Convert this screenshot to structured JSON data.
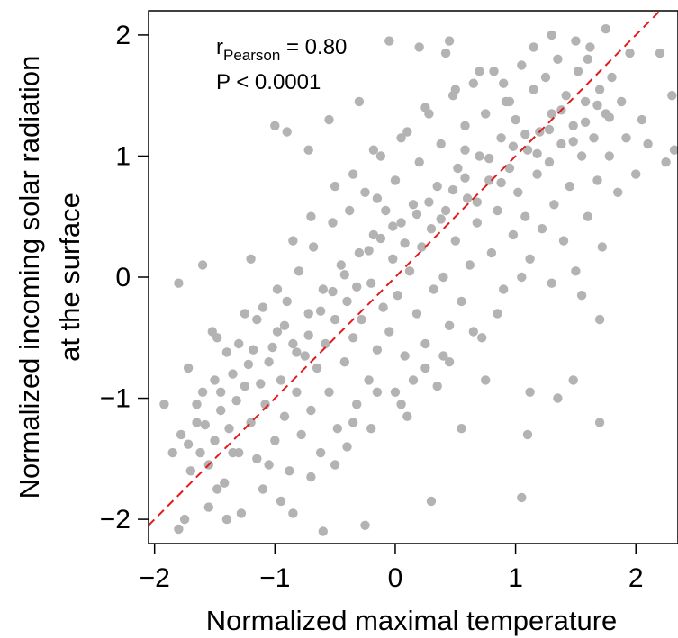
{
  "chart_data": {
    "type": "scatter",
    "title": "",
    "xlabel": "Normalized maximal temperature",
    "ylabel_lines": [
      "Normalized incoming solar radiation",
      "at the surface"
    ],
    "xlim": [
      -2.05,
      2.35
    ],
    "ylim": [
      -2.2,
      2.2
    ],
    "x_ticks": [
      -2,
      -1,
      0,
      1,
      2
    ],
    "y_ticks": [
      -2,
      -1,
      0,
      1,
      2
    ],
    "x_tick_labels": [
      "−2",
      "−1",
      "0",
      "1",
      "2"
    ],
    "y_tick_labels": [
      "−2",
      "−1",
      "0",
      "1",
      "2"
    ],
    "annotation": {
      "r_main": "r",
      "r_sub": "Pearson",
      "r_value": " = 0.80",
      "p_text": "P < 0.0001"
    },
    "fit_line": {
      "slope": 1.0,
      "intercept": 0.0,
      "color": "#e31a1c",
      "style": "dashed"
    },
    "point_color": "#b3b3b3",
    "grid": false,
    "points": [
      [
        -1.92,
        -1.05
      ],
      [
        -1.85,
        -1.45
      ],
      [
        -1.8,
        -2.08
      ],
      [
        -1.78,
        -1.3
      ],
      [
        -1.75,
        -2.0
      ],
      [
        -1.72,
        -0.75
      ],
      [
        -1.7,
        -1.6
      ],
      [
        -1.65,
        -1.2
      ],
      [
        -1.62,
        -1.45
      ],
      [
        -1.6,
        -0.95
      ],
      [
        -1.55,
        -1.55
      ],
      [
        -1.52,
        -0.45
      ],
      [
        -1.5,
        -1.35
      ],
      [
        -1.48,
        -0.5
      ],
      [
        -1.45,
        -1.1
      ],
      [
        -1.42,
        -1.7
      ],
      [
        -1.4,
        -0.62
      ],
      [
        -1.38,
        -1.25
      ],
      [
        -1.35,
        -0.8
      ],
      [
        -1.3,
        -1.45
      ],
      [
        -1.28,
        -1.95
      ],
      [
        -1.25,
        -0.9
      ],
      [
        -1.2,
        -1.2
      ],
      [
        -1.18,
        -0.6
      ],
      [
        -1.15,
        -1.5
      ],
      [
        -1.1,
        -0.25
      ],
      [
        -1.08,
        -1.05
      ],
      [
        -1.05,
        -0.7
      ],
      [
        -1.0,
        -1.35
      ],
      [
        -0.98,
        -0.45
      ],
      [
        -0.95,
        -0.85
      ],
      [
        -0.92,
        -1.15
      ],
      [
        -0.9,
        -0.2
      ],
      [
        -0.88,
        -1.6
      ],
      [
        -0.85,
        -0.55
      ],
      [
        -0.82,
        -0.95
      ],
      [
        -0.8,
        0.05
      ],
      [
        -0.78,
        -1.3
      ],
      [
        -0.75,
        -0.65
      ],
      [
        -0.72,
        -0.3
      ],
      [
        -0.7,
        -1.1
      ],
      [
        -0.68,
        0.25
      ],
      [
        -0.65,
        -0.75
      ],
      [
        -0.62,
        -1.45
      ],
      [
        -0.6,
        -0.1
      ],
      [
        -0.58,
        -0.55
      ],
      [
        -0.55,
        -0.95
      ],
      [
        -0.52,
        0.45
      ],
      [
        -0.5,
        -0.35
      ],
      [
        -0.48,
        -1.25
      ],
      [
        -0.45,
        0.1
      ],
      [
        -0.42,
        -0.7
      ],
      [
        -0.4,
        -0.2
      ],
      [
        -0.38,
        0.55
      ],
      [
        -0.35,
        -0.5
      ],
      [
        -0.32,
        -1.05
      ],
      [
        -0.3,
        0.2
      ],
      [
        -0.28,
        -0.35
      ],
      [
        -0.25,
        0.7
      ],
      [
        -0.22,
        -0.85
      ],
      [
        -0.2,
        -0.05
      ],
      [
        -0.18,
        0.35
      ],
      [
        -0.15,
        -0.6
      ],
      [
        -0.12,
        1.0
      ],
      [
        -0.1,
        -0.25
      ],
      [
        -0.08,
        0.55
      ],
      [
        -0.05,
        -0.45
      ],
      [
        -0.02,
        0.15
      ],
      [
        0.0,
        0.8
      ],
      [
        0.02,
        -0.15
      ],
      [
        0.05,
        0.45
      ],
      [
        0.08,
        -0.65
      ],
      [
        0.1,
        1.2
      ],
      [
        0.12,
        0.05
      ],
      [
        0.15,
        0.6
      ],
      [
        0.18,
        -0.3
      ],
      [
        0.2,
        0.95
      ],
      [
        0.22,
        0.25
      ],
      [
        0.25,
        -0.55
      ],
      [
        0.28,
        1.35
      ],
      [
        0.3,
        0.4
      ],
      [
        0.32,
        -0.1
      ],
      [
        0.35,
        0.75
      ],
      [
        0.38,
        1.1
      ],
      [
        0.4,
        0.0
      ],
      [
        0.42,
        0.55
      ],
      [
        0.45,
        -0.4
      ],
      [
        0.48,
        1.5
      ],
      [
        0.5,
        0.3
      ],
      [
        0.52,
        0.9
      ],
      [
        0.55,
        -0.2
      ],
      [
        0.58,
        1.25
      ],
      [
        0.6,
        0.65
      ],
      [
        0.62,
        0.1
      ],
      [
        0.65,
        1.6
      ],
      [
        0.68,
        0.45
      ],
      [
        0.7,
        1.0
      ],
      [
        0.72,
        -0.5
      ],
      [
        0.75,
        1.35
      ],
      [
        0.78,
        0.8
      ],
      [
        0.8,
        0.2
      ],
      [
        0.82,
        1.7
      ],
      [
        0.85,
        0.55
      ],
      [
        0.88,
        1.15
      ],
      [
        0.9,
        -0.1
      ],
      [
        0.92,
        1.45
      ],
      [
        0.95,
        0.9
      ],
      [
        0.98,
        0.35
      ],
      [
        1.0,
        1.3
      ],
      [
        1.02,
        0.7
      ],
      [
        1.05,
        1.75
      ],
      [
        1.08,
        0.5
      ],
      [
        1.1,
        1.05
      ],
      [
        1.12,
        0.15
      ],
      [
        1.15,
        1.55
      ],
      [
        1.18,
        0.85
      ],
      [
        1.2,
        1.2
      ],
      [
        1.22,
        0.4
      ],
      [
        1.25,
        1.65
      ],
      [
        1.28,
        0.95
      ],
      [
        1.3,
        1.35
      ],
      [
        1.32,
        0.6
      ],
      [
        1.35,
        1.8
      ],
      [
        1.38,
        1.1
      ],
      [
        1.4,
        0.3
      ],
      [
        1.42,
        1.5
      ],
      [
        1.45,
        0.75
      ],
      [
        1.48,
        1.25
      ],
      [
        1.5,
        0.05
      ],
      [
        1.52,
        1.7
      ],
      [
        1.55,
        1.0
      ],
      [
        1.58,
        1.45
      ],
      [
        1.6,
        0.5
      ],
      [
        1.62,
        1.9
      ],
      [
        1.65,
        1.15
      ],
      [
        1.68,
        0.8
      ],
      [
        1.7,
        1.55
      ],
      [
        1.72,
        0.25
      ],
      [
        1.75,
        1.35
      ],
      [
        1.78,
        1.0
      ],
      [
        1.8,
        1.65
      ],
      [
        1.85,
        0.7
      ],
      [
        1.88,
        1.45
      ],
      [
        1.92,
        1.15
      ],
      [
        1.95,
        1.85
      ],
      [
        2.0,
        0.85
      ],
      [
        2.05,
        1.3
      ],
      [
        2.1,
        1.1
      ],
      [
        2.2,
        1.85
      ],
      [
        2.25,
        0.95
      ],
      [
        2.3,
        1.5
      ],
      [
        2.32,
        1.05
      ],
      [
        -1.8,
        -0.05
      ],
      [
        -1.6,
        0.1
      ],
      [
        -1.25,
        -0.3
      ],
      [
        -1.2,
        0.15
      ],
      [
        -1.0,
        1.25
      ],
      [
        -0.9,
        1.2
      ],
      [
        -0.72,
        1.05
      ],
      [
        -0.55,
        1.3
      ],
      [
        -0.3,
        1.45
      ],
      [
        -0.25,
        -2.05
      ],
      [
        -0.6,
        -2.1
      ],
      [
        -0.05,
        1.95
      ],
      [
        0.1,
        -1.15
      ],
      [
        0.2,
        1.9
      ],
      [
        0.45,
        1.95
      ],
      [
        0.3,
        -1.85
      ],
      [
        0.55,
        -1.25
      ],
      [
        0.75,
        -0.85
      ],
      [
        1.05,
        -1.82
      ],
      [
        1.1,
        -1.3
      ],
      [
        1.12,
        -0.95
      ],
      [
        1.35,
        -1.0
      ],
      [
        1.48,
        -0.85
      ],
      [
        1.7,
        -1.2
      ],
      [
        1.7,
        -0.35
      ],
      [
        0.58,
        1.05
      ],
      [
        0.42,
        1.85
      ],
      [
        0.95,
        1.45
      ],
      [
        -0.15,
        0.65
      ],
      [
        0.35,
        -0.9
      ],
      [
        -1.48,
        -1.75
      ],
      [
        -1.35,
        -1.45
      ],
      [
        -1.05,
        -1.55
      ],
      [
        -0.95,
        -1.85
      ],
      [
        -0.7,
        -1.65
      ],
      [
        -0.4,
        -1.4
      ],
      [
        -0.2,
        -1.25
      ],
      [
        0.0,
        -0.95
      ],
      [
        0.15,
        -0.85
      ],
      [
        0.4,
        -0.65
      ],
      [
        -1.55,
        -1.9
      ],
      [
        -1.4,
        -2.0
      ],
      [
        -1.1,
        -1.75
      ],
      [
        -0.85,
        -1.95
      ],
      [
        -0.5,
        -1.55
      ],
      [
        -1.65,
        -1.05
      ],
      [
        -1.5,
        -0.85
      ],
      [
        -1.3,
        -0.55
      ],
      [
        -1.15,
        -0.35
      ],
      [
        -0.98,
        -0.1
      ],
      [
        -0.85,
        0.3
      ],
      [
        -0.7,
        0.5
      ],
      [
        -0.5,
        0.75
      ],
      [
        -0.35,
        0.85
      ],
      [
        -0.18,
        1.05
      ],
      [
        0.05,
        1.15
      ],
      [
        0.25,
        1.4
      ],
      [
        0.5,
        1.55
      ],
      [
        0.7,
        1.7
      ],
      [
        0.9,
        1.6
      ],
      [
        1.15,
        1.9
      ],
      [
        1.3,
        2.0
      ],
      [
        1.5,
        1.95
      ],
      [
        1.6,
        1.8
      ],
      [
        1.75,
        2.05
      ],
      [
        1.55,
        -0.15
      ],
      [
        1.3,
        -0.05
      ],
      [
        1.05,
        0.0
      ],
      [
        0.85,
        -0.3
      ],
      [
        0.65,
        -0.45
      ],
      [
        0.45,
        -0.7
      ],
      [
        0.25,
        -0.75
      ],
      [
        0.05,
        -1.05
      ],
      [
        -0.15,
        -0.95
      ],
      [
        -0.35,
        -1.2
      ],
      [
        -1.72,
        -1.38
      ],
      [
        -1.58,
        -1.22
      ],
      [
        -1.45,
        -0.95
      ],
      [
        -1.32,
        -1.02
      ],
      [
        -1.22,
        -0.72
      ],
      [
        -1.12,
        -0.88
      ],
      [
        -1.02,
        -0.58
      ],
      [
        -0.92,
        -0.4
      ],
      [
        -0.82,
        -0.62
      ],
      [
        -0.72,
        -0.48
      ],
      [
        -0.62,
        -0.28
      ],
      [
        -0.52,
        -0.12
      ],
      [
        -0.42,
        0.02
      ],
      [
        -0.32,
        -0.08
      ],
      [
        -0.22,
        0.22
      ],
      [
        -0.12,
        0.32
      ],
      [
        -0.02,
        0.42
      ],
      [
        0.08,
        0.28
      ],
      [
        0.18,
        0.52
      ],
      [
        0.28,
        0.62
      ],
      [
        0.38,
        0.48
      ],
      [
        0.48,
        0.72
      ],
      [
        0.58,
        0.82
      ],
      [
        0.68,
        0.62
      ],
      [
        0.78,
        0.98
      ],
      [
        0.88,
        0.78
      ],
      [
        0.98,
        1.08
      ],
      [
        1.08,
        1.18
      ],
      [
        1.18,
        1.02
      ],
      [
        1.28,
        1.22
      ],
      [
        1.38,
        1.38
      ],
      [
        1.48,
        1.12
      ],
      [
        1.58,
        1.28
      ],
      [
        1.68,
        1.42
      ],
      [
        1.78,
        1.32
      ]
    ]
  }
}
